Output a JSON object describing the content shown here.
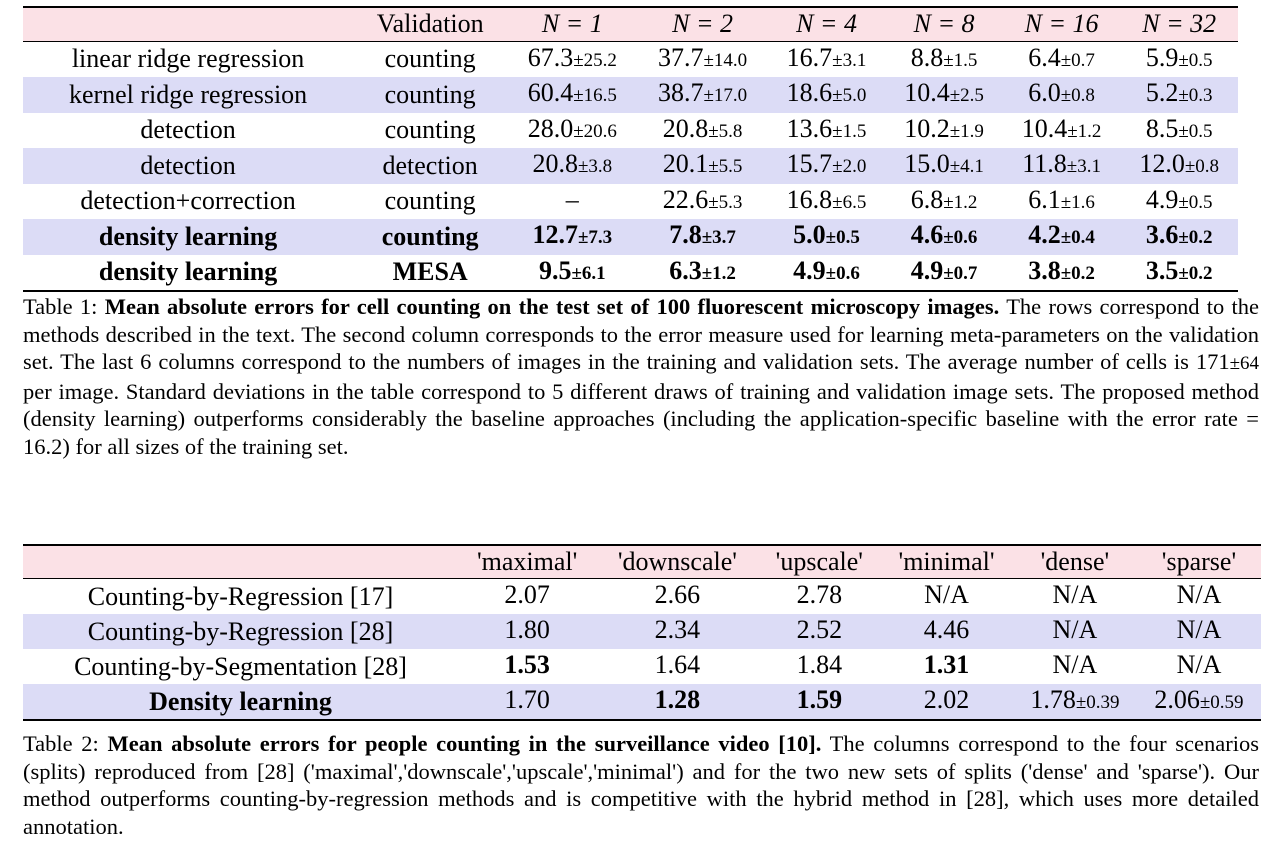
{
  "table1": {
    "header": [
      "",
      "Validation",
      "N = 1",
      "N = 2",
      "N = 4",
      "N = 8",
      "N = 16",
      "N = 32"
    ],
    "rows": [
      {
        "method": "linear ridge regression",
        "validation": "counting",
        "bold": false,
        "shade": false,
        "cells": [
          [
            "67.3",
            "±25.2"
          ],
          [
            "37.7",
            "±14.0"
          ],
          [
            "16.7",
            "±3.1"
          ],
          [
            "8.8",
            "±1.5"
          ],
          [
            "6.4",
            "±0.7"
          ],
          [
            "5.9",
            "±0.5"
          ]
        ]
      },
      {
        "method": "kernel ridge regression",
        "validation": "counting",
        "bold": false,
        "shade": true,
        "cells": [
          [
            "60.4",
            "±16.5"
          ],
          [
            "38.7",
            "±17.0"
          ],
          [
            "18.6",
            "±5.0"
          ],
          [
            "10.4",
            "±2.5"
          ],
          [
            "6.0",
            "±0.8"
          ],
          [
            "5.2",
            "±0.3"
          ]
        ]
      },
      {
        "method": "detection",
        "validation": "counting",
        "bold": false,
        "shade": false,
        "cells": [
          [
            "28.0",
            "±20.6"
          ],
          [
            "20.8",
            "±5.8"
          ],
          [
            "13.6",
            "±1.5"
          ],
          [
            "10.2",
            "±1.9"
          ],
          [
            "10.4",
            "±1.2"
          ],
          [
            "8.5",
            "±0.5"
          ]
        ]
      },
      {
        "method": "detection",
        "validation": "detection",
        "bold": false,
        "shade": true,
        "cells": [
          [
            "20.8",
            "±3.8"
          ],
          [
            "20.1",
            "±5.5"
          ],
          [
            "15.7",
            "±2.0"
          ],
          [
            "15.0",
            "±4.1"
          ],
          [
            "11.8",
            "±3.1"
          ],
          [
            "12.0",
            "±0.8"
          ]
        ]
      },
      {
        "method": "detection+correction",
        "validation": "counting",
        "bold": false,
        "shade": false,
        "cells": [
          [
            "–",
            ""
          ],
          [
            "22.6",
            "±5.3"
          ],
          [
            "16.8",
            "±6.5"
          ],
          [
            "6.8",
            "±1.2"
          ],
          [
            "6.1",
            "±1.6"
          ],
          [
            "4.9",
            "±0.5"
          ]
        ]
      },
      {
        "method": "density learning",
        "validation": "counting",
        "bold": true,
        "shade": true,
        "cells": [
          [
            "12.7",
            "±7.3"
          ],
          [
            "7.8",
            "±3.7"
          ],
          [
            "5.0",
            "±0.5"
          ],
          [
            "4.6",
            "±0.6"
          ],
          [
            "4.2",
            "±0.4"
          ],
          [
            "3.6",
            "±0.2"
          ]
        ]
      },
      {
        "method": "density learning",
        "validation": "MESA",
        "bold": true,
        "shade": false,
        "cells": [
          [
            "9.5",
            "±6.1"
          ],
          [
            "6.3",
            "±1.2"
          ],
          [
            "4.9",
            "±0.6"
          ],
          [
            "4.9",
            "±0.7"
          ],
          [
            "3.8",
            "±0.2"
          ],
          [
            "3.5",
            "±0.2"
          ]
        ]
      }
    ]
  },
  "caption1": {
    "label": "Table 1:",
    "bold_title": "Mean absolute errors for cell counting on the test set of 100 fluorescent microscopy images.",
    "text_a": "The rows correspond to the methods described in the text. The second column corresponds to the error measure used for learning meta-parameters on the validation set. The last 6 columns correspond to the numbers of images in the training and validation sets. The average number of cells is ",
    "cells_mean": "171",
    "cells_sd": "±64",
    "text_b": " per image. Standard deviations in the table correspond to 5 different draws of training and validation image sets. The proposed method (density learning) outperforms considerably the baseline approaches (including the application-specific baseline with the error rate = 16.2) for all sizes of the training set."
  },
  "table2": {
    "header": [
      "",
      "'maximal'",
      "'downscale'",
      "'upscale'",
      "'minimal'",
      "'dense'",
      "'sparse'"
    ],
    "rows": [
      {
        "method": "Counting-by-Regression [17]",
        "bold": false,
        "shade": false,
        "cells": [
          {
            "v": "2.07",
            "sd": "",
            "b": false
          },
          {
            "v": "2.66",
            "sd": "",
            "b": false
          },
          {
            "v": "2.78",
            "sd": "",
            "b": false
          },
          {
            "v": "N/A",
            "sd": "",
            "b": false
          },
          {
            "v": "N/A",
            "sd": "",
            "b": false
          },
          {
            "v": "N/A",
            "sd": "",
            "b": false
          }
        ]
      },
      {
        "method": "Counting-by-Regression [28]",
        "bold": false,
        "shade": true,
        "cells": [
          {
            "v": "1.80",
            "sd": "",
            "b": false
          },
          {
            "v": "2.34",
            "sd": "",
            "b": false
          },
          {
            "v": "2.52",
            "sd": "",
            "b": false
          },
          {
            "v": "4.46",
            "sd": "",
            "b": false
          },
          {
            "v": "N/A",
            "sd": "",
            "b": false
          },
          {
            "v": "N/A",
            "sd": "",
            "b": false
          }
        ]
      },
      {
        "method": "Counting-by-Segmentation [28]",
        "bold": false,
        "shade": false,
        "cells": [
          {
            "v": "1.53",
            "sd": "",
            "b": true
          },
          {
            "v": "1.64",
            "sd": "",
            "b": false
          },
          {
            "v": "1.84",
            "sd": "",
            "b": false
          },
          {
            "v": "1.31",
            "sd": "",
            "b": true
          },
          {
            "v": "N/A",
            "sd": "",
            "b": false
          },
          {
            "v": "N/A",
            "sd": "",
            "b": false
          }
        ]
      },
      {
        "method": "Density learning",
        "bold": true,
        "shade": true,
        "cells": [
          {
            "v": "1.70",
            "sd": "",
            "b": false
          },
          {
            "v": "1.28",
            "sd": "",
            "b": true
          },
          {
            "v": "1.59",
            "sd": "",
            "b": true
          },
          {
            "v": "2.02",
            "sd": "",
            "b": false
          },
          {
            "v": "1.78",
            "sd": "±0.39",
            "b": false
          },
          {
            "v": "2.06",
            "sd": "±0.59",
            "b": false
          }
        ]
      }
    ]
  },
  "caption2": {
    "label": "Table 2:",
    "bold_title": "Mean absolute errors for people counting in the surveillance video [10].",
    "text": "The columns correspond to the four scenarios (splits) reproduced from [28] ('maximal','downscale','upscale','minimal') and for the two new sets of splits ('dense' and 'sparse'). Our method outperforms counting-by-regression methods and is competitive with the hybrid method in [28], which uses more detailed annotation."
  }
}
